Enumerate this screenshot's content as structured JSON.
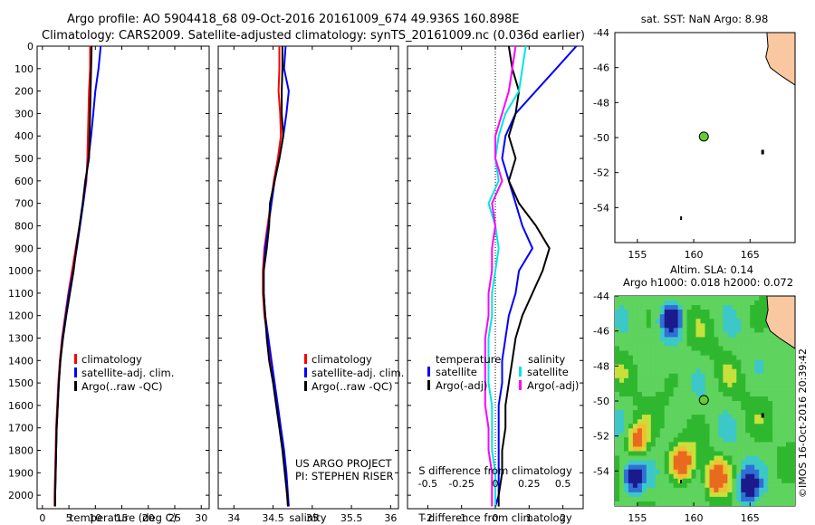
{
  "header": {
    "line1": "Argo profile: AO 5904418_68 09-Oct-2016 20161009_674 49.936S 160.898E",
    "line2": "Climatology: CARS2009. Satellite-adjusted climatology: synTS_20161009.nc (0.036d earlier)"
  },
  "colors": {
    "climatology": "#ff0000",
    "satellite": "#0000ff",
    "argo": "#000000",
    "salinity_satellite": "#00e5e5",
    "salinity_argo": "#ff00ff",
    "land": "#f9c8a0",
    "float_marker": "#66cc33"
  },
  "stamp": "©IMOS 16-Oct-2016 20:39:42",
  "chart_data": [
    {
      "id": "temperature",
      "type": "line",
      "xlabel": "temperature (deg C)",
      "ylabel": "",
      "xlim": [
        -1,
        31.5
      ],
      "ylim": [
        2060,
        0
      ],
      "xticks": [
        0,
        5,
        10,
        15,
        20,
        25,
        30
      ],
      "yticks": [
        0,
        100,
        200,
        300,
        400,
        500,
        600,
        700,
        800,
        900,
        1000,
        1100,
        1200,
        1300,
        1400,
        1500,
        1600,
        1700,
        1800,
        1900,
        2000
      ],
      "legend": [
        "climatology",
        "satellite-adj. clim.",
        "Argo(..raw -QC)"
      ],
      "annotation": [],
      "series": [
        {
          "name": "climatology",
          "color": "#ff0000",
          "x": [
            9.0,
            9.0,
            8.8,
            8.7,
            8.6,
            8.5,
            8.3,
            7.7,
            7.0,
            6.3,
            5.6,
            4.9,
            4.3,
            3.7,
            3.3,
            3.0,
            2.8,
            2.6,
            2.5,
            2.4,
            2.3,
            2.3
          ],
          "y": [
            0,
            100,
            200,
            300,
            400,
            500,
            600,
            700,
            800,
            900,
            1000,
            1100,
            1200,
            1300,
            1400,
            1500,
            1600,
            1700,
            1800,
            1900,
            2000,
            2050
          ]
        },
        {
          "name": "satellite-adj. clim.",
          "color": "#0000ff",
          "x": [
            11.0,
            10.6,
            10.0,
            9.6,
            9.2,
            8.7,
            8.2,
            7.7,
            7.1,
            6.5,
            5.8,
            5.0,
            4.4,
            3.8,
            3.4,
            3.1,
            2.9,
            2.7,
            2.6,
            2.5,
            2.4,
            2.4
          ],
          "y": [
            0,
            100,
            200,
            300,
            400,
            500,
            600,
            700,
            800,
            900,
            1000,
            1100,
            1200,
            1300,
            1400,
            1500,
            1600,
            1700,
            1800,
            1900,
            2000,
            2050
          ]
        },
        {
          "name": "Argo(..raw -QC)",
          "color": "#000000",
          "x": [
            9.3,
            9.2,
            9.1,
            9.0,
            8.9,
            8.8,
            8.1,
            7.6,
            7.0,
            6.4,
            5.9,
            5.2,
            4.5,
            3.9,
            3.4,
            3.1,
            2.9,
            2.7,
            2.6,
            2.5,
            2.4,
            2.4
          ],
          "y": [
            0,
            100,
            200,
            300,
            400,
            500,
            600,
            700,
            800,
            900,
            1000,
            1100,
            1200,
            1300,
            1400,
            1500,
            1600,
            1700,
            1800,
            1900,
            2000,
            2050
          ]
        }
      ]
    },
    {
      "id": "salinity",
      "type": "line",
      "xlabel": "salinity",
      "ylabel": "",
      "xlim": [
        33.8,
        36.1
      ],
      "ylim": [
        2060,
        0
      ],
      "xticks": [
        34,
        34.5,
        35,
        35.5,
        36
      ],
      "legend": [
        "climatology",
        "satellite-adj. clim.",
        "Argo(..raw -QC)"
      ],
      "annotation": [
        "US ARGO PROJECT",
        "PI: STEPHEN RISER"
      ],
      "series": [
        {
          "name": "climatology",
          "color": "#ff0000",
          "x": [
            34.58,
            34.58,
            34.57,
            34.59,
            34.6,
            34.56,
            34.51,
            34.47,
            34.43,
            34.39,
            34.37,
            34.37,
            34.39,
            34.43,
            34.47,
            34.51,
            34.55,
            34.59,
            34.63,
            34.66,
            34.68,
            34.69
          ],
          "y": [
            0,
            100,
            200,
            300,
            400,
            500,
            600,
            700,
            800,
            900,
            1000,
            1100,
            1200,
            1300,
            1400,
            1500,
            1600,
            1700,
            1800,
            1900,
            2000,
            2050
          ]
        },
        {
          "name": "satellite-adj. clim.",
          "color": "#0000ff",
          "x": [
            34.66,
            34.64,
            34.7,
            34.67,
            34.63,
            34.58,
            34.52,
            34.48,
            34.44,
            34.4,
            34.38,
            34.38,
            34.4,
            34.44,
            34.48,
            34.52,
            34.56,
            34.6,
            34.64,
            34.67,
            34.69,
            34.7
          ],
          "y": [
            0,
            100,
            200,
            300,
            400,
            500,
            600,
            700,
            800,
            900,
            1000,
            1100,
            1200,
            1300,
            1400,
            1500,
            1600,
            1700,
            1800,
            1900,
            2000,
            2050
          ]
        },
        {
          "name": "Argo(..raw -QC)",
          "color": "#000000",
          "x": [
            34.62,
            34.62,
            34.61,
            34.61,
            34.63,
            34.58,
            34.52,
            34.46,
            34.45,
            34.42,
            34.38,
            34.38,
            34.4,
            34.42,
            34.45,
            34.5,
            34.54,
            34.58,
            34.62,
            34.65,
            34.68,
            34.69
          ],
          "y": [
            0,
            100,
            200,
            300,
            400,
            500,
            600,
            700,
            800,
            900,
            1000,
            1100,
            1200,
            1300,
            1400,
            1500,
            1600,
            1700,
            1800,
            1900,
            2000,
            2050
          ]
        }
      ]
    },
    {
      "id": "difference",
      "type": "line",
      "xlabel": "T difference from climatology",
      "x2label": "S difference from climatology",
      "ylabel": "",
      "xlim": [
        -2.6,
        2.6
      ],
      "ylim": [
        2060,
        0
      ],
      "xticks": [
        -2,
        -1,
        0,
        1,
        2
      ],
      "x2ticks": [
        "-0.5",
        "-0.25",
        "0",
        "0.25",
        "0.5"
      ],
      "x2tick_positions": [
        -2,
        -1,
        0,
        1,
        2
      ],
      "legend_groups": [
        {
          "title": "temperature",
          "entries": [
            "satellite",
            "Argo(-adj)"
          ]
        },
        {
          "title": "salinity",
          "entries": [
            "satellite",
            "Argo(-adj)"
          ]
        }
      ],
      "series": [
        {
          "name": "temperature satellite",
          "color": "#0000ff",
          "x": [
            2.4,
            1.8,
            1.2,
            0.6,
            0.3,
            0.2,
            0.4,
            0.6,
            0.8,
            1.1,
            0.7,
            0.6,
            0.4,
            0.3,
            0.2,
            0.2,
            0.1,
            0.1,
            0.1,
            0.1,
            0.1,
            0.0
          ],
          "y": [
            0,
            100,
            200,
            300,
            400,
            500,
            600,
            700,
            800,
            900,
            1000,
            1100,
            1200,
            1300,
            1400,
            1500,
            1600,
            1700,
            1800,
            1900,
            2000,
            2050
          ]
        },
        {
          "name": "temperature Argo(-adj)",
          "color": "#000000",
          "x": [
            0.4,
            0.5,
            0.7,
            0.6,
            0.4,
            0.6,
            0.4,
            0.7,
            1.2,
            1.6,
            1.4,
            1.1,
            0.8,
            0.6,
            0.5,
            0.4,
            0.3,
            0.3,
            0.2,
            0.2,
            0.1,
            0.1
          ],
          "y": [
            0,
            100,
            200,
            300,
            400,
            500,
            600,
            700,
            800,
            900,
            1000,
            1100,
            1200,
            1300,
            1400,
            1500,
            1600,
            1700,
            1800,
            1900,
            2000,
            2050
          ]
        },
        {
          "name": "salinity satellite",
          "color": "#00e5e5",
          "x": [
            0.9,
            0.8,
            0.7,
            0.3,
            0.1,
            0.0,
            0.1,
            -0.2,
            0.0,
            0.1,
            0.0,
            -0.1,
            -0.1,
            -0.2,
            -0.2,
            -0.2,
            -0.1,
            -0.1,
            -0.1,
            0.0,
            0.0,
            0.0
          ],
          "y": [
            0,
            100,
            200,
            300,
            400,
            500,
            600,
            700,
            800,
            900,
            1000,
            1100,
            1200,
            1300,
            1400,
            1500,
            1600,
            1700,
            1800,
            1900,
            2000,
            2050
          ]
        },
        {
          "name": "salinity Argo(-adj)",
          "color": "#ff00ff",
          "x": [
            0.6,
            0.5,
            0.4,
            0.2,
            0.0,
            0.0,
            0.2,
            -0.1,
            0.0,
            -0.1,
            -0.1,
            -0.2,
            -0.2,
            -0.3,
            -0.3,
            -0.3,
            -0.3,
            -0.2,
            -0.2,
            -0.1,
            -0.1,
            -0.1
          ],
          "y": [
            0,
            100,
            200,
            300,
            400,
            500,
            600,
            700,
            800,
            900,
            1000,
            1100,
            1200,
            1300,
            1400,
            1500,
            1600,
            1700,
            1800,
            1900,
            2000,
            2050
          ]
        }
      ]
    },
    {
      "id": "sst_map",
      "type": "scatter",
      "title": "sat. SST: NaN Argo: 8.98",
      "xlim": [
        153,
        169
      ],
      "ylim": [
        -56,
        -44
      ],
      "xticks": [
        155,
        160,
        165
      ],
      "yticks": [
        -44,
        -46,
        -48,
        -50,
        -52,
        -54
      ],
      "float": {
        "lon": 160.9,
        "lat": -49.94
      }
    },
    {
      "id": "sla_map",
      "type": "heatmap",
      "title": "Altim. SLA: 0.14",
      "subtitle": "Argo h1000: 0.018 h2000: 0.072",
      "xlim": [
        153,
        169
      ],
      "ylim": [
        -56,
        -44
      ],
      "xticks": [
        155,
        160,
        165
      ],
      "yticks": [
        -44,
        -46,
        -48,
        -50,
        -52,
        -54
      ],
      "float": {
        "lon": 160.9,
        "lat": -49.94
      },
      "field_features": [
        {
          "lon": 154.6,
          "lat": -54.4,
          "kind": "low"
        },
        {
          "lon": 164.8,
          "lat": -54.9,
          "kind": "low"
        },
        {
          "lon": 162.0,
          "lat": -54.4,
          "kind": "high"
        },
        {
          "lon": 155.0,
          "lat": -52.2,
          "kind": "high"
        },
        {
          "lon": 159.0,
          "lat": -53.5,
          "kind": "high"
        },
        {
          "lon": 158.0,
          "lat": -45.3,
          "kind": "low"
        }
      ]
    }
  ]
}
